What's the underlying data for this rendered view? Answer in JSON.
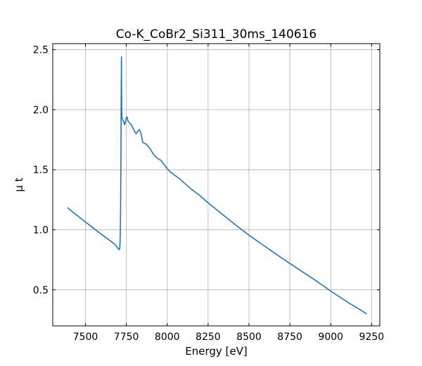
{
  "chart_data": {
    "type": "line",
    "title": "Co-K_CoBr2_Si311_30ms_140616",
    "xlabel": "Energy [eV]",
    "ylabel": "μ t",
    "xlim": [
      7300,
      9300
    ],
    "ylim": [
      0.2,
      2.55
    ],
    "xticks": [
      7500,
      7750,
      8000,
      8250,
      8500,
      8750,
      9000,
      9250
    ],
    "xtick_labels": [
      "7500",
      "7750",
      "8000",
      "8250",
      "8500",
      "8750",
      "9000",
      "9250"
    ],
    "yticks": [
      0.5,
      1.0,
      1.5,
      2.0,
      2.5
    ],
    "ytick_labels": [
      "0.5",
      "1.0",
      "1.5",
      "2.0",
      "2.5"
    ],
    "grid": true,
    "line_color": "#1f77b4",
    "series": [
      {
        "x": [
          7390,
          7420,
          7450,
          7500,
          7550,
          7600,
          7650,
          7680,
          7690,
          7697,
          7703,
          7707,
          7710,
          7713,
          7715,
          7717,
          7718,
          7719,
          7720,
          7721,
          7722,
          7723,
          7725,
          7730,
          7740,
          7750,
          7755,
          7760,
          7770,
          7780,
          7790,
          7800,
          7810,
          7820,
          7830,
          7840,
          7850,
          7860,
          7870,
          7880,
          7890,
          7900,
          7920,
          7940,
          7960,
          7980,
          8000,
          8020,
          8040,
          8060,
          8080,
          8100,
          8150,
          8200,
          8250,
          8300,
          8400,
          8500,
          8600,
          8700,
          8800,
          8900,
          9000,
          9100,
          9220
        ],
        "y": [
          1.185,
          1.15,
          1.118,
          1.065,
          1.012,
          0.96,
          0.91,
          0.878,
          0.863,
          0.848,
          0.838,
          0.835,
          0.85,
          0.95,
          1.2,
          1.6,
          2.0,
          2.25,
          2.44,
          2.2,
          1.98,
          1.935,
          1.93,
          1.91,
          1.875,
          1.93,
          1.94,
          1.905,
          1.89,
          1.875,
          1.85,
          1.82,
          1.8,
          1.82,
          1.835,
          1.8,
          1.73,
          1.72,
          1.715,
          1.7,
          1.685,
          1.665,
          1.62,
          1.595,
          1.58,
          1.545,
          1.51,
          1.48,
          1.46,
          1.44,
          1.42,
          1.395,
          1.335,
          1.285,
          1.225,
          1.17,
          1.06,
          0.955,
          0.86,
          0.765,
          0.675,
          0.585,
          0.49,
          0.4,
          0.3
        ]
      }
    ]
  }
}
